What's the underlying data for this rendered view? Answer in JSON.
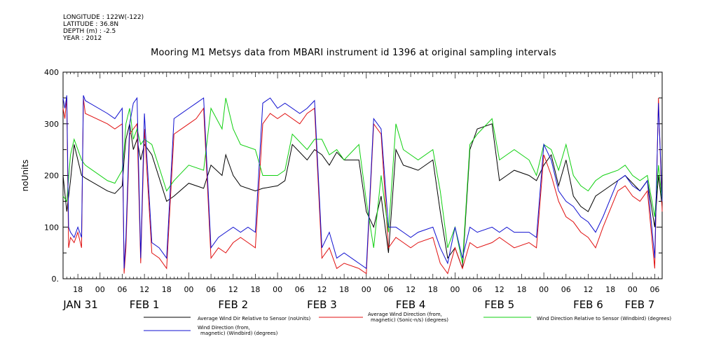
{
  "header": {
    "longitude": "LONGITUDE : 122W(-122)",
    "latitude": "LATITUDE : 36.8N",
    "depth": "DEPTH (m) : -2.5",
    "year": "YEAR : 2012"
  },
  "chart_data": {
    "type": "line",
    "title": "Mooring M1 Metsys data from MBARI instrument id 1396 at original sampling intervals",
    "ylabel": "noUnits",
    "xlabel": "",
    "ylim": [
      0,
      400
    ],
    "xlim_hours": [
      -10,
      152
    ],
    "grid": false,
    "legend_position": "bottom",
    "y_ticks": [
      "0.",
      "100",
      "200",
      "300",
      "400"
    ],
    "x_tick_labels": [
      {
        "h": -6,
        "label": "18"
      },
      {
        "h": 0,
        "label": "00"
      },
      {
        "h": 6,
        "label": "06"
      },
      {
        "h": 12,
        "label": "12"
      },
      {
        "h": 18,
        "label": "18"
      },
      {
        "h": 24,
        "label": "00"
      },
      {
        "h": 30,
        "label": "06"
      },
      {
        "h": 36,
        "label": "12"
      },
      {
        "h": 42,
        "label": "18"
      },
      {
        "h": 48,
        "label": "00"
      },
      {
        "h": 54,
        "label": "06"
      },
      {
        "h": 60,
        "label": "12"
      },
      {
        "h": 66,
        "label": "18"
      },
      {
        "h": 72,
        "label": "00"
      },
      {
        "h": 78,
        "label": "06"
      },
      {
        "h": 84,
        "label": "12"
      },
      {
        "h": 90,
        "label": "18"
      },
      {
        "h": 96,
        "label": "00"
      },
      {
        "h": 102,
        "label": "06"
      },
      {
        "h": 108,
        "label": "12"
      },
      {
        "h": 114,
        "label": "18"
      },
      {
        "h": 120,
        "label": "00"
      },
      {
        "h": 126,
        "label": "06"
      },
      {
        "h": 132,
        "label": "12"
      },
      {
        "h": 138,
        "label": "18"
      },
      {
        "h": 144,
        "label": "00"
      },
      {
        "h": 150,
        "label": "06"
      }
    ],
    "day_labels": [
      {
        "h": -12,
        "label": "JAN 31"
      },
      {
        "h": 12,
        "label": "FEB  1"
      },
      {
        "h": 36,
        "label": "FEB  2"
      },
      {
        "h": 60,
        "label": "FEB  3"
      },
      {
        "h": 84,
        "label": "FEB  4"
      },
      {
        "h": 108,
        "label": "FEB  5"
      },
      {
        "h": 132,
        "label": "FEB  6"
      },
      {
        "h": 156,
        "label": "FEB  7"
      }
    ],
    "series": [
      {
        "name": "Average Wind Dir Relative to Sensor (noUnits)",
        "color": "#000000",
        "x": [
          -10,
          -9,
          -8,
          -7,
          -6,
          -5,
          -4,
          2,
          4,
          6,
          6.5,
          7,
          8,
          9,
          10,
          11,
          12,
          14,
          18,
          20,
          24,
          28,
          30,
          33,
          34,
          36,
          38,
          42,
          44,
          48,
          50,
          52,
          56,
          58,
          60,
          62,
          64,
          66,
          70,
          72,
          74,
          76,
          78,
          80,
          82,
          84,
          86,
          90,
          92,
          94,
          96,
          98,
          100,
          102,
          106,
          108,
          110,
          112,
          116,
          118,
          120,
          122,
          124,
          126,
          128,
          130,
          132,
          134,
          136,
          140,
          142,
          144,
          146,
          148,
          150,
          151,
          152
        ],
        "values": [
          200,
          130,
          190,
          260,
          230,
          200,
          195,
          170,
          165,
          180,
          230,
          270,
          300,
          250,
          270,
          230,
          260,
          240,
          150,
          160,
          185,
          175,
          220,
          200,
          240,
          200,
          180,
          170,
          175,
          180,
          190,
          260,
          230,
          250,
          240,
          220,
          245,
          230,
          230,
          130,
          100,
          160,
          50,
          250,
          220,
          215,
          210,
          230,
          130,
          40,
          60,
          20,
          250,
          290,
          300,
          190,
          200,
          210,
          200,
          190,
          220,
          240,
          180,
          230,
          160,
          140,
          130,
          160,
          170,
          190,
          200,
          185,
          170,
          190,
          100,
          200,
          140
        ]
      },
      {
        "name": "Average Wind Direction (from, magnetic) (Sonic-n/s) (degrees)",
        "color": "#e01010",
        "x": [
          -10,
          -9.5,
          -9,
          -8.5,
          -8,
          -7,
          -6,
          -5,
          -4.5,
          -4,
          2,
          4,
          6,
          6.5,
          7,
          8,
          9,
          10,
          11,
          12,
          14,
          16,
          18,
          20,
          24,
          26,
          28,
          30,
          32,
          34,
          36,
          38,
          40,
          42,
          44,
          46,
          48,
          50,
          54,
          56,
          58,
          60,
          62,
          64,
          66,
          70,
          72,
          74,
          76,
          78,
          80,
          82,
          84,
          86,
          90,
          92,
          94,
          96,
          98,
          100,
          102,
          106,
          108,
          110,
          112,
          116,
          118,
          120,
          122,
          124,
          126,
          128,
          130,
          132,
          134,
          136,
          140,
          142,
          144,
          146,
          148,
          150,
          151,
          152
        ],
        "values": [
          330,
          310,
          350,
          60,
          80,
          70,
          90,
          60,
          350,
          320,
          300,
          290,
          300,
          10,
          60,
          280,
          290,
          300,
          30,
          290,
          50,
          40,
          20,
          280,
          300,
          310,
          330,
          40,
          60,
          50,
          70,
          80,
          70,
          60,
          300,
          320,
          310,
          320,
          300,
          320,
          330,
          40,
          60,
          20,
          30,
          20,
          10,
          300,
          280,
          60,
          80,
          70,
          60,
          70,
          80,
          30,
          10,
          60,
          20,
          70,
          60,
          70,
          80,
          70,
          60,
          70,
          60,
          240,
          200,
          150,
          120,
          110,
          90,
          80,
          60,
          100,
          170,
          180,
          160,
          150,
          170,
          20,
          350,
          130
        ]
      },
      {
        "name": "Wind Direction Relative to Sensor (Windbird) (degrees)",
        "color": "#10d010",
        "x": [
          -10,
          -9,
          -8,
          -7,
          -6,
          -5,
          -4,
          2,
          4,
          6,
          6.5,
          7,
          8,
          9,
          10,
          11,
          12,
          14,
          18,
          20,
          24,
          28,
          30,
          33,
          34,
          36,
          38,
          42,
          44,
          48,
          50,
          52,
          56,
          58,
          60,
          62,
          64,
          66,
          70,
          72,
          74,
          76,
          78,
          80,
          82,
          84,
          86,
          90,
          92,
          94,
          96,
          98,
          100,
          102,
          106,
          108,
          110,
          112,
          116,
          118,
          120,
          122,
          124,
          126,
          128,
          130,
          132,
          134,
          136,
          140,
          142,
          144,
          146,
          148,
          150,
          151,
          152
        ],
        "values": [
          160,
          150,
          240,
          270,
          250,
          230,
          220,
          190,
          185,
          210,
          250,
          300,
          330,
          270,
          290,
          260,
          270,
          260,
          170,
          190,
          220,
          210,
          330,
          290,
          350,
          290,
          260,
          250,
          200,
          200,
          210,
          280,
          250,
          270,
          270,
          240,
          250,
          230,
          260,
          150,
          60,
          200,
          90,
          300,
          250,
          240,
          230,
          250,
          170,
          60,
          100,
          30,
          260,
          280,
          310,
          230,
          240,
          250,
          230,
          200,
          260,
          250,
          210,
          260,
          200,
          180,
          170,
          190,
          200,
          210,
          220,
          200,
          190,
          200,
          120,
          220,
          150
        ]
      },
      {
        "name": "Wind Direction (from, magnetic) (Windbird) (degrees)",
        "color": "#1010d0",
        "x": [
          -10,
          -9.5,
          -9,
          -8.5,
          -8,
          -7,
          -6,
          -5,
          -4.5,
          -4,
          2,
          4,
          6,
          6.5,
          7,
          8,
          9,
          10,
          11,
          12,
          14,
          16,
          18,
          20,
          24,
          26,
          28,
          30,
          32,
          34,
          36,
          38,
          40,
          42,
          44,
          46,
          48,
          50,
          54,
          56,
          58,
          60,
          62,
          64,
          66,
          70,
          72,
          74,
          76,
          78,
          80,
          82,
          84,
          86,
          90,
          92,
          94,
          96,
          98,
          100,
          102,
          106,
          108,
          110,
          112,
          116,
          118,
          120,
          122,
          124,
          126,
          128,
          130,
          132,
          134,
          136,
          140,
          142,
          144,
          146,
          148,
          150,
          151,
          152
        ],
        "values": [
          350,
          330,
          355,
          100,
          90,
          80,
          100,
          80,
          355,
          345,
          320,
          310,
          330,
          20,
          80,
          300,
          340,
          350,
          40,
          320,
          70,
          60,
          40,
          310,
          330,
          340,
          350,
          60,
          80,
          90,
          100,
          90,
          100,
          90,
          340,
          350,
          330,
          340,
          320,
          330,
          345,
          60,
          90,
          40,
          50,
          30,
          20,
          310,
          290,
          100,
          100,
          90,
          80,
          90,
          100,
          60,
          30,
          100,
          40,
          100,
          90,
          100,
          90,
          100,
          90,
          90,
          80,
          260,
          230,
          170,
          150,
          140,
          120,
          110,
          90,
          120,
          190,
          200,
          180,
          170,
          190,
          40,
          340,
          150
        ]
      }
    ]
  },
  "legend": [
    {
      "label": "Average Wind Dir Relative to Sensor (noUnits)",
      "color": "#000000"
    },
    {
      "label": "Average Wind Direction (from,\nmagnetic) (Sonic-n/s) (degrees)",
      "color": "#e01010"
    },
    {
      "label": "Wind Direction Relative to Sensor (Windbird) (degrees)",
      "color": "#10d010"
    },
    {
      "label": "Wind Direction (from,\nmagnetic) (Windbird) (degrees)",
      "color": "#1010d0"
    }
  ]
}
